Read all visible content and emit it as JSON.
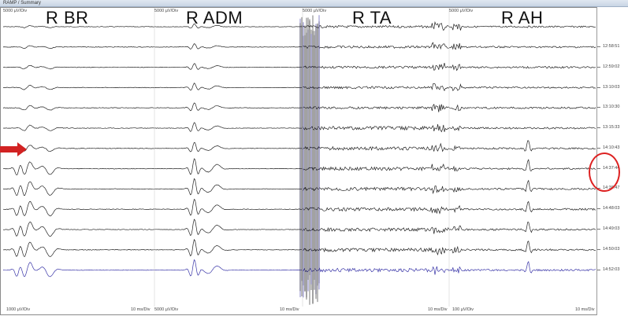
{
  "window": {
    "title": "RAMP / Summary"
  },
  "channels": [
    {
      "label": "R BR",
      "gain": "5000 µV/Div"
    },
    {
      "label": "R ADM",
      "gain": "5000 µV/Div"
    },
    {
      "label": "R TA",
      "gain": "5000 µV/Div"
    },
    {
      "label": "R AH",
      "gain": "5000 µV/Div"
    }
  ],
  "footer": {
    "left_gain": "1000 µV/Div",
    "left_sweep": "10 ms/Div",
    "mid_gain": "5000 µV/Div",
    "mid_sweep": "10 ms/Div",
    "right_sweep_a": "10 ms/Div",
    "right_gain": "100 µV/Div",
    "right_sweep_b": "10 ms/Div"
  },
  "timestamps": [
    "12:58:51",
    "12:59:02",
    "13:10:03",
    "13:10:30",
    "13:15:33",
    "14:10:43",
    "14:37:44",
    "14:38:47",
    "14:48:03",
    "14:49:03",
    "14:50:03",
    "14:52:03"
  ],
  "colors": {
    "trace": "#222222",
    "latest_trace": "#3a36a8",
    "highlight": "#d22222"
  },
  "icons": {
    "arrow": "right-arrow-icon",
    "circle": "circle-highlight"
  }
}
